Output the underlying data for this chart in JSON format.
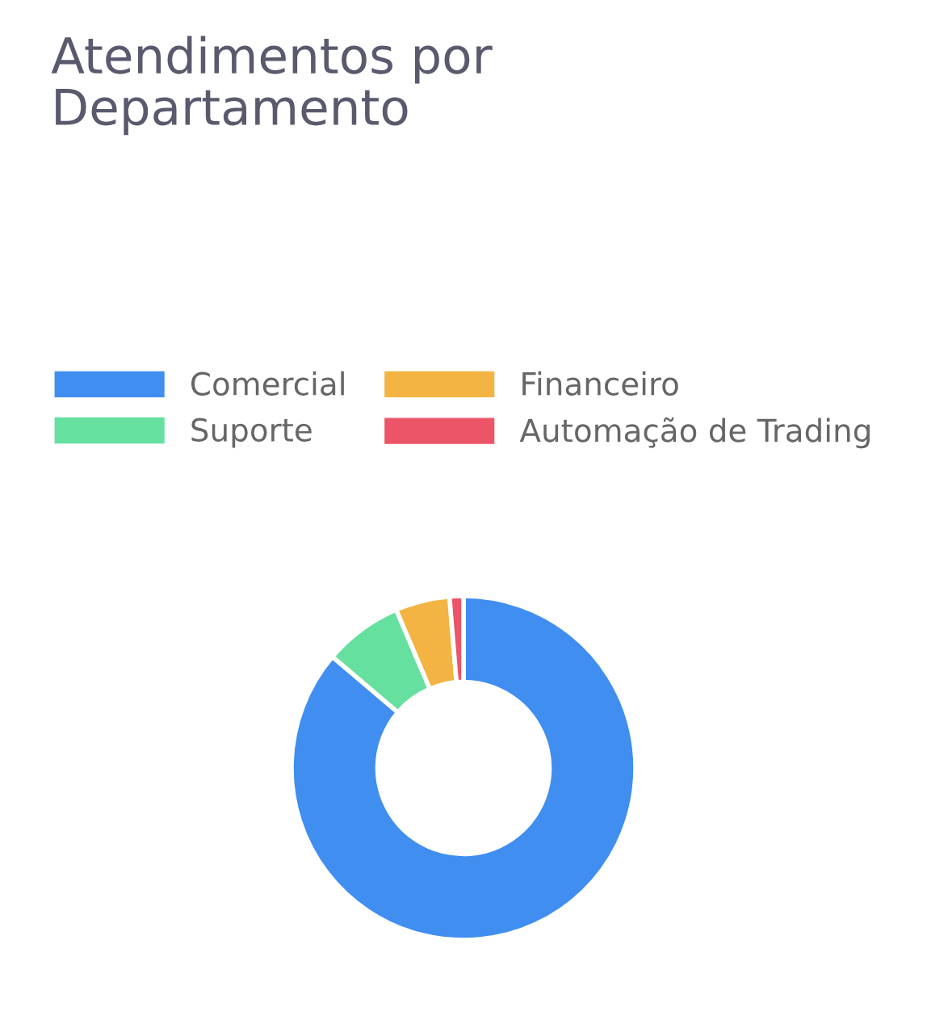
{
  "chart_data": {
    "type": "donut",
    "title": "Atendimentos por\nDepartamento",
    "categories": [
      "Comercial",
      "Suporte",
      "Financeiro",
      "Automação de Trading"
    ],
    "values": [
      86.2,
      7.4,
      5.1,
      1.3
    ],
    "colors": [
      "#3f8ef0",
      "#66e09e",
      "#f3b443",
      "#ec5468"
    ],
    "legend": "top"
  }
}
